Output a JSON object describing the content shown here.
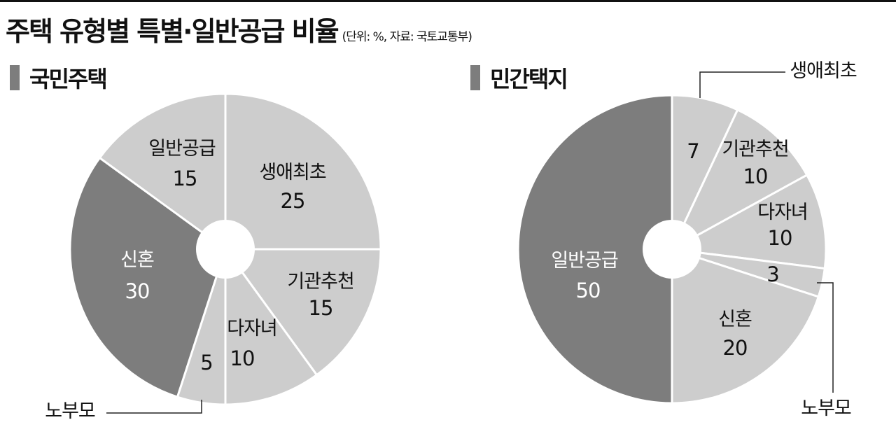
{
  "title": "주택 유형별 특별·일반공급 비율",
  "title_note": "(단위: %, 자료: 국토교통부)",
  "colors": {
    "light": "#cdcdcd",
    "dark": "#7d7d7d",
    "divider": "#ffffff",
    "text": "#111111"
  },
  "chart_data": [
    {
      "type": "pie",
      "title": "국민주택",
      "slices": [
        {
          "label": "생애최초",
          "value": 25,
          "shade": "light"
        },
        {
          "label": "기관추천",
          "value": 15,
          "shade": "light"
        },
        {
          "label": "다자녀",
          "value": 10,
          "shade": "light"
        },
        {
          "label": "노부모",
          "value": 5,
          "shade": "light"
        },
        {
          "label": "신혼",
          "value": 30,
          "shade": "dark"
        },
        {
          "label": "일반공급",
          "value": 15,
          "shade": "light"
        }
      ]
    },
    {
      "type": "pie",
      "title": "민간택지",
      "slices": [
        {
          "label": "생애최초",
          "value": 7,
          "shade": "light"
        },
        {
          "label": "기관추천",
          "value": 10,
          "shade": "light"
        },
        {
          "label": "다자녀",
          "value": 10,
          "shade": "light"
        },
        {
          "label": "노부모",
          "value": 3,
          "shade": "light"
        },
        {
          "label": "신혼",
          "value": 20,
          "shade": "light"
        },
        {
          "label": "일반공급",
          "value": 50,
          "shade": "dark"
        }
      ]
    }
  ]
}
